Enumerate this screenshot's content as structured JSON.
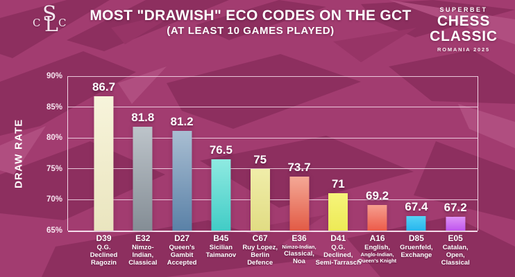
{
  "header": {
    "title": "MOST \"DRAWISH\" ECO CODES ON THE GCT",
    "subtitle": "(AT LEAST 10 GAMES PLAYED)",
    "left_logo": {
      "name": "cslc-monogram",
      "letters": [
        "C",
        "S",
        "L",
        "C"
      ]
    },
    "right_logo": {
      "brand": "SUPERBET",
      "line1": "CHESS",
      "line2": "CLASSIC",
      "event": "ROMANIA 2025"
    }
  },
  "colors": {
    "background": "#a23c70",
    "background_dark_shapes": "#8d2f5f",
    "background_mid_shapes": "#973466",
    "background_light_shapes": "#b04e80",
    "gridline": "#f9e2f0",
    "text": "#ffffff"
  },
  "chart_data": {
    "type": "bar",
    "title": "MOST \"DRAWISH\" ECO CODES ON THE GCT",
    "subtitle": "(AT LEAST 10 GAMES PLAYED)",
    "ylabel": "DRAW RATE",
    "xlabel": "",
    "ylim": [
      65,
      90
    ],
    "yticks": [
      "90%",
      "85%",
      "80%",
      "75%",
      "70%",
      "65%"
    ],
    "grid": true,
    "legend": "none",
    "categories": [
      "D39 Q.G. Declined Ragozin",
      "E32 Nimzo-Indian, Classical",
      "D27 Queen's Gambit Accepted",
      "B45 Sicilian Taimanov",
      "C67 Ruy Lopez, Berlin Defence",
      "E36 Nimzo-Indian, Classical, Noa",
      "D41 Q.G. Declined, Semi-Tarrasch",
      "A16 English, Anglo-Indian, Queen's Knight",
      "D85 Gruenfeld, Exchange",
      "E05 Catalan, Open, Classical"
    ],
    "values": [
      86.7,
      81.8,
      81.2,
      76.5,
      75,
      73.7,
      71,
      69.2,
      67.4,
      67.2
    ],
    "bars": [
      {
        "code": "D39",
        "value": 86.7,
        "lines": [
          "Q.G.",
          "Declined",
          "Ragozin"
        ],
        "small": [],
        "top": "#f7f4db",
        "bottom": "#eae5bf"
      },
      {
        "code": "E32",
        "value": 81.8,
        "lines": [
          "Nimzo-",
          "Indian,",
          "Classical"
        ],
        "small": [],
        "top": "#bdc4ca",
        "bottom": "#848d95"
      },
      {
        "code": "D27",
        "value": 81.2,
        "lines": [
          "Queen's",
          "Gambit",
          "Accepted"
        ],
        "small": [],
        "top": "#a9bed2",
        "bottom": "#5a81a7"
      },
      {
        "code": "B45",
        "value": 76.5,
        "lines": [
          "Sicilian",
          "Taimanov"
        ],
        "small": [],
        "top": "#8feae1",
        "bottom": "#41ccc6"
      },
      {
        "code": "C67",
        "value": 75,
        "lines": [
          "Ruy Lopez,",
          "Berlin",
          "Defence"
        ],
        "small": [],
        "top": "#f0eda9",
        "bottom": "#e1dc83"
      },
      {
        "code": "E36",
        "value": 73.7,
        "lines": [
          "Nimzo-Indian,",
          "Classical,",
          "Noa"
        ],
        "small": [
          0
        ],
        "top": "#f4a896",
        "bottom": "#e25b45"
      },
      {
        "code": "D41",
        "value": 71,
        "lines": [
          "Q.G.",
          "Declined,",
          "Semi-Tarrasch"
        ],
        "small": [],
        "top": "#f6f47a",
        "bottom": "#edea56"
      },
      {
        "code": "A16",
        "value": 69.2,
        "lines": [
          "English,",
          "Anglo-Indian,",
          "Queen's Knight"
        ],
        "small": [
          1,
          2
        ],
        "top": "#f69e8f",
        "bottom": "#ec5b49"
      },
      {
        "code": "D85",
        "value": 67.4,
        "lines": [
          "Gruenfeld,",
          "Exchange"
        ],
        "small": [],
        "top": "#55d2f5",
        "bottom": "#27b6ee"
      },
      {
        "code": "E05",
        "value": 67.2,
        "lines": [
          "Catalan,",
          "Open,",
          "Classical"
        ],
        "small": [],
        "top": "#de92f6",
        "bottom": "#bf55ee"
      }
    ]
  }
}
